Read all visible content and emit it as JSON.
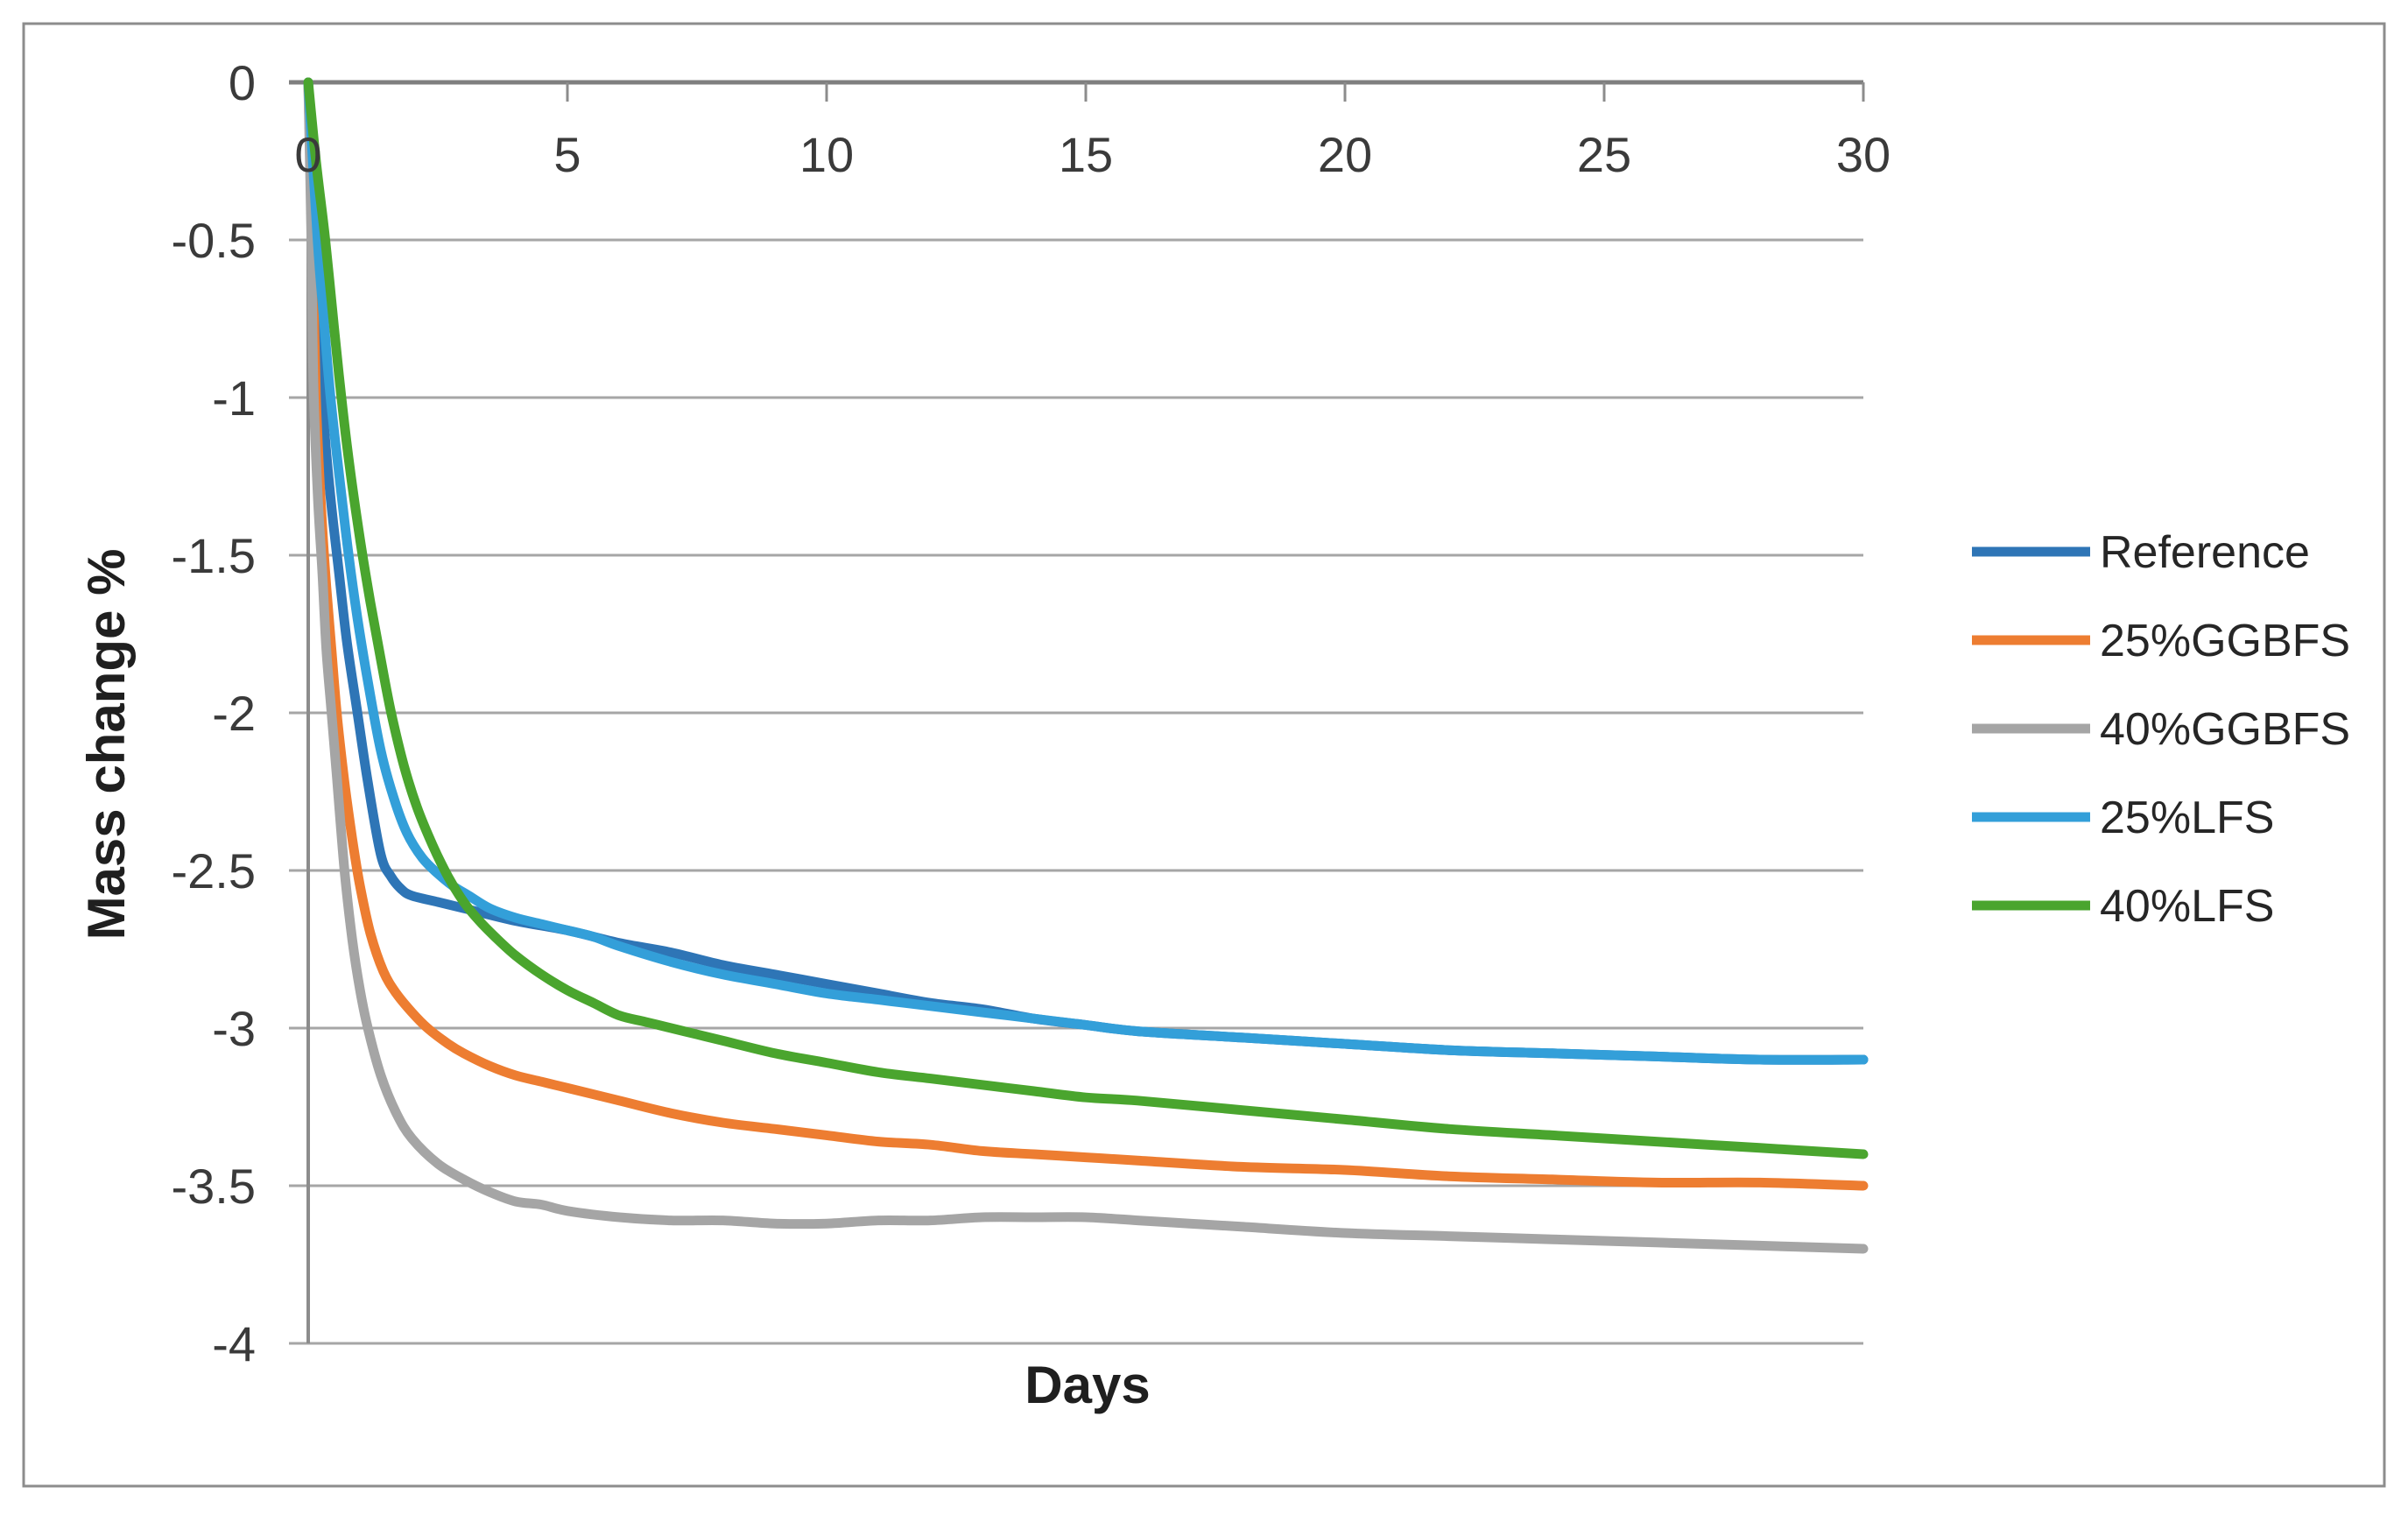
{
  "chart_data": {
    "type": "line",
    "title": "",
    "xlabel": "Days",
    "ylabel": "Mass change %",
    "xlim": [
      0,
      30
    ],
    "ylim": [
      -4,
      0
    ],
    "x_ticks": [
      0,
      5,
      10,
      15,
      20,
      25,
      30
    ],
    "x_tick_labels": [
      "0",
      "5",
      "10",
      "15",
      "20",
      "25",
      "30"
    ],
    "y_ticks": [
      0,
      -0.5,
      -1,
      -1.5,
      -2,
      -2.5,
      -3,
      -3.5,
      -4
    ],
    "y_tick_labels": [
      "0",
      "-0.5",
      "-1",
      "-1.5",
      "-2",
      "-2.5",
      "-3",
      "-3.5",
      "-4"
    ],
    "grid": "horizontal",
    "x_axis_position": "top",
    "legend_position": "right",
    "series": [
      {
        "name": "Reference",
        "color": "#2E75B6",
        "points": [
          [
            0,
            0
          ],
          [
            0.13,
            -0.5
          ],
          [
            0.27,
            -1
          ],
          [
            0.42,
            -1.3
          ],
          [
            0.59,
            -1.55
          ],
          [
            0.75,
            -1.78
          ],
          [
            0.95,
            -2
          ],
          [
            1.15,
            -2.22
          ],
          [
            1.4,
            -2.45
          ],
          [
            1.6,
            -2.52
          ],
          [
            1.8,
            -2.56
          ],
          [
            2,
            -2.58
          ],
          [
            2.5,
            -2.6
          ],
          [
            3,
            -2.62
          ],
          [
            4,
            -2.66
          ],
          [
            5,
            -2.69
          ],
          [
            6,
            -2.73
          ],
          [
            7,
            -2.76
          ],
          [
            8,
            -2.8
          ],
          [
            9,
            -2.83
          ],
          [
            10,
            -2.86
          ],
          [
            11,
            -2.89
          ],
          [
            12,
            -2.92
          ],
          [
            13,
            -2.94
          ],
          [
            14,
            -2.97
          ],
          [
            15,
            -2.99
          ],
          [
            16,
            -3.01
          ],
          [
            18,
            -3.03
          ],
          [
            20,
            -3.05
          ],
          [
            22,
            -3.07
          ],
          [
            24,
            -3.08
          ],
          [
            26,
            -3.09
          ],
          [
            28,
            -3.1
          ],
          [
            30,
            -3.1
          ]
        ]
      },
      {
        "name": "25%GGBFS",
        "color": "#ED7D31",
        "points": [
          [
            0,
            0
          ],
          [
            0.08,
            -0.5
          ],
          [
            0.15,
            -1
          ],
          [
            0.25,
            -1.35
          ],
          [
            0.35,
            -1.6
          ],
          [
            0.45,
            -1.8
          ],
          [
            0.55,
            -2
          ],
          [
            0.7,
            -2.22
          ],
          [
            0.85,
            -2.4
          ],
          [
            1,
            -2.55
          ],
          [
            1.2,
            -2.7
          ],
          [
            1.45,
            -2.82
          ],
          [
            1.7,
            -2.89
          ],
          [
            2,
            -2.95
          ],
          [
            2.3,
            -3
          ],
          [
            2.7,
            -3.05
          ],
          [
            3,
            -3.08
          ],
          [
            3.5,
            -3.12
          ],
          [
            4,
            -3.15
          ],
          [
            4.5,
            -3.17
          ],
          [
            5,
            -3.19
          ],
          [
            6,
            -3.23
          ],
          [
            7,
            -3.27
          ],
          [
            8,
            -3.3
          ],
          [
            9,
            -3.32
          ],
          [
            10,
            -3.34
          ],
          [
            11,
            -3.36
          ],
          [
            12,
            -3.37
          ],
          [
            13,
            -3.39
          ],
          [
            14,
            -3.4
          ],
          [
            15,
            -3.41
          ],
          [
            16,
            -3.42
          ],
          [
            18,
            -3.44
          ],
          [
            20,
            -3.45
          ],
          [
            22,
            -3.47
          ],
          [
            24,
            -3.48
          ],
          [
            26,
            -3.49
          ],
          [
            28,
            -3.49
          ],
          [
            30,
            -3.5
          ]
        ]
      },
      {
        "name": "40%GGBFS",
        "color": "#A5A5A5",
        "points": [
          [
            0,
            0
          ],
          [
            0.06,
            -0.5
          ],
          [
            0.1,
            -0.95
          ],
          [
            0.18,
            -1.3
          ],
          [
            0.27,
            -1.55
          ],
          [
            0.35,
            -1.8
          ],
          [
            0.45,
            -2
          ],
          [
            0.55,
            -2.2
          ],
          [
            0.7,
            -2.5
          ],
          [
            0.85,
            -2.72
          ],
          [
            1,
            -2.88
          ],
          [
            1.15,
            -3
          ],
          [
            1.4,
            -3.15
          ],
          [
            1.7,
            -3.27
          ],
          [
            2,
            -3.35
          ],
          [
            2.5,
            -3.43
          ],
          [
            3,
            -3.48
          ],
          [
            3.5,
            -3.52
          ],
          [
            4,
            -3.55
          ],
          [
            4.5,
            -3.56
          ],
          [
            5,
            -3.58
          ],
          [
            6,
            -3.6
          ],
          [
            7,
            -3.61
          ],
          [
            8,
            -3.61
          ],
          [
            9,
            -3.62
          ],
          [
            10,
            -3.62
          ],
          [
            11,
            -3.61
          ],
          [
            12,
            -3.61
          ],
          [
            13,
            -3.6
          ],
          [
            14,
            -3.6
          ],
          [
            15,
            -3.6
          ],
          [
            16,
            -3.61
          ],
          [
            17,
            -3.62
          ],
          [
            18,
            -3.63
          ],
          [
            20,
            -3.65
          ],
          [
            22,
            -3.66
          ],
          [
            24,
            -3.67
          ],
          [
            26,
            -3.68
          ],
          [
            28,
            -3.69
          ],
          [
            30,
            -3.7
          ]
        ]
      },
      {
        "name": "25%LFS",
        "color": "#339FD9",
        "points": [
          [
            0,
            0
          ],
          [
            0.18,
            -0.5
          ],
          [
            0.3,
            -0.75
          ],
          [
            0.43,
            -1
          ],
          [
            0.6,
            -1.25
          ],
          [
            0.78,
            -1.5
          ],
          [
            0.95,
            -1.7
          ],
          [
            1.15,
            -1.9
          ],
          [
            1.4,
            -2.12
          ],
          [
            1.65,
            -2.27
          ],
          [
            1.9,
            -2.38
          ],
          [
            2.2,
            -2.46
          ],
          [
            2.5,
            -2.51
          ],
          [
            2.8,
            -2.55
          ],
          [
            3.1,
            -2.58
          ],
          [
            3.5,
            -2.62
          ],
          [
            4,
            -2.65
          ],
          [
            4.5,
            -2.67
          ],
          [
            5,
            -2.69
          ],
          [
            5.5,
            -2.71
          ],
          [
            6,
            -2.74
          ],
          [
            7,
            -2.79
          ],
          [
            8,
            -2.83
          ],
          [
            9,
            -2.86
          ],
          [
            10,
            -2.89
          ],
          [
            11,
            -2.91
          ],
          [
            12,
            -2.93
          ],
          [
            13,
            -2.95
          ],
          [
            14,
            -2.97
          ],
          [
            15,
            -2.99
          ],
          [
            16,
            -3.01
          ],
          [
            18,
            -3.03
          ],
          [
            20,
            -3.05
          ],
          [
            22,
            -3.07
          ],
          [
            24,
            -3.08
          ],
          [
            26,
            -3.09
          ],
          [
            28,
            -3.1
          ],
          [
            30,
            -3.1
          ]
        ]
      },
      {
        "name": "40%LFS",
        "color": "#4AA52E",
        "points": [
          [
            0,
            0
          ],
          [
            0.15,
            -0.25
          ],
          [
            0.33,
            -0.5
          ],
          [
            0.5,
            -0.78
          ],
          [
            0.64,
            -1
          ],
          [
            0.8,
            -1.22
          ],
          [
            1,
            -1.45
          ],
          [
            1.2,
            -1.65
          ],
          [
            1.4,
            -1.83
          ],
          [
            1.6,
            -2
          ],
          [
            1.85,
            -2.17
          ],
          [
            2.1,
            -2.3
          ],
          [
            2.4,
            -2.42
          ],
          [
            2.7,
            -2.52
          ],
          [
            3,
            -2.6
          ],
          [
            3.3,
            -2.66
          ],
          [
            3.6,
            -2.71
          ],
          [
            4,
            -2.77
          ],
          [
            4.5,
            -2.83
          ],
          [
            5,
            -2.88
          ],
          [
            5.5,
            -2.92
          ],
          [
            6,
            -2.96
          ],
          [
            6.5,
            -2.98
          ],
          [
            7,
            -3
          ],
          [
            7.5,
            -3.02
          ],
          [
            8,
            -3.04
          ],
          [
            9,
            -3.08
          ],
          [
            10,
            -3.11
          ],
          [
            11,
            -3.14
          ],
          [
            12,
            -3.16
          ],
          [
            13,
            -3.18
          ],
          [
            14,
            -3.2
          ],
          [
            15,
            -3.22
          ],
          [
            16,
            -3.23
          ],
          [
            18,
            -3.26
          ],
          [
            20,
            -3.29
          ],
          [
            22,
            -3.32
          ],
          [
            24,
            -3.34
          ],
          [
            26,
            -3.36
          ],
          [
            28,
            -3.38
          ],
          [
            30,
            -3.4
          ]
        ]
      }
    ]
  },
  "style": {
    "background": "#FFFFFF",
    "frame_color": "#8C8C8C",
    "grid_color": "#A6A6A6",
    "top_axis_color": "#7F7F7F",
    "y_axis_color": "#8C8C8C",
    "tick_label_color": "#3A3A3A",
    "title_color": "#1F1F1F",
    "legend_text_color": "#262626"
  }
}
